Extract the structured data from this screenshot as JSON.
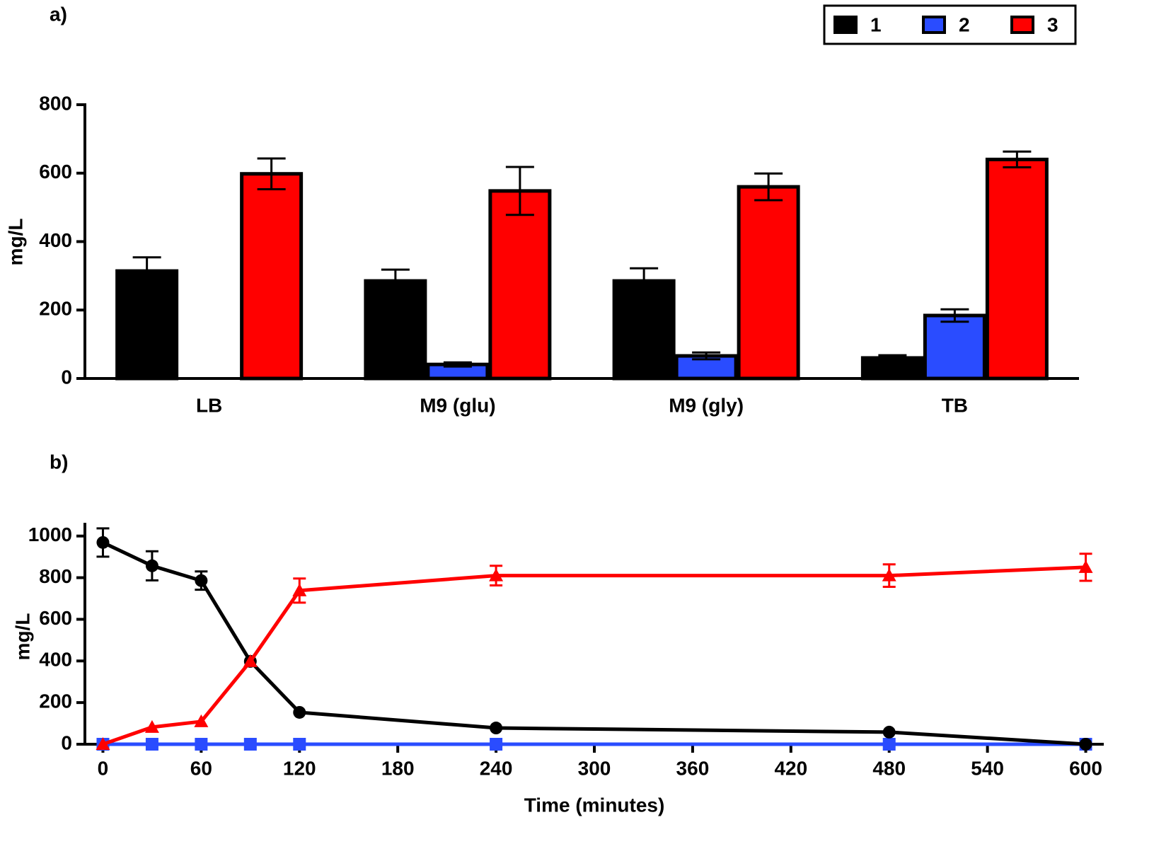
{
  "chart_data": [
    {
      "type": "bar",
      "panel_label": "a)",
      "ylabel": "mg/L",
      "categories": [
        "LB",
        "M9 (glu)",
        "M9 (gly)",
        "TB"
      ],
      "series": [
        {
          "name": "1",
          "color": "#000000",
          "values": [
            314,
            285,
            285,
            60
          ],
          "errors": [
            40,
            33,
            37,
            8
          ]
        },
        {
          "name": "2",
          "color": "#2a4cff",
          "values": [
            0,
            41,
            66,
            184
          ],
          "errors": [
            0,
            6,
            10,
            18
          ]
        },
        {
          "name": "3",
          "color": "#ff0000",
          "values": [
            598,
            548,
            560,
            640
          ],
          "errors": [
            45,
            70,
            39,
            23
          ]
        }
      ],
      "ylim": [
        0,
        800
      ],
      "yticks": [
        0,
        200,
        400,
        600,
        800
      ],
      "legend": "top-right"
    },
    {
      "type": "line",
      "panel_label": "b)",
      "ylabel": "mg/L",
      "xlabel": "Time (minutes)",
      "x": [
        0,
        30,
        60,
        90,
        120,
        240,
        480,
        600
      ],
      "series": [
        {
          "color": "#000000",
          "marker": "circle",
          "values": [
            969,
            857,
            786,
            398,
            153,
            78,
            58,
            0
          ],
          "errors": [
            68,
            70,
            44,
            0,
            0,
            0,
            0,
            0
          ]
        },
        {
          "color": "#2a4cff",
          "marker": "square",
          "values": [
            0,
            0,
            0,
            0,
            0,
            0,
            0,
            0
          ],
          "errors": [
            0,
            0,
            0,
            0,
            0,
            0,
            0,
            0
          ]
        },
        {
          "color": "#ff0000",
          "marker": "triangle",
          "values": [
            0,
            82,
            109,
            398,
            738,
            810,
            810,
            850
          ],
          "errors": [
            0,
            0,
            0,
            0,
            58,
            47,
            54,
            65
          ]
        }
      ],
      "xlim": [
        -11,
        611
      ],
      "xticks": [
        0,
        60,
        120,
        180,
        240,
        300,
        360,
        420,
        480,
        540,
        600
      ],
      "ylim": [
        0,
        1050
      ],
      "yticks": [
        0,
        200,
        400,
        600,
        800,
        1000
      ]
    }
  ]
}
